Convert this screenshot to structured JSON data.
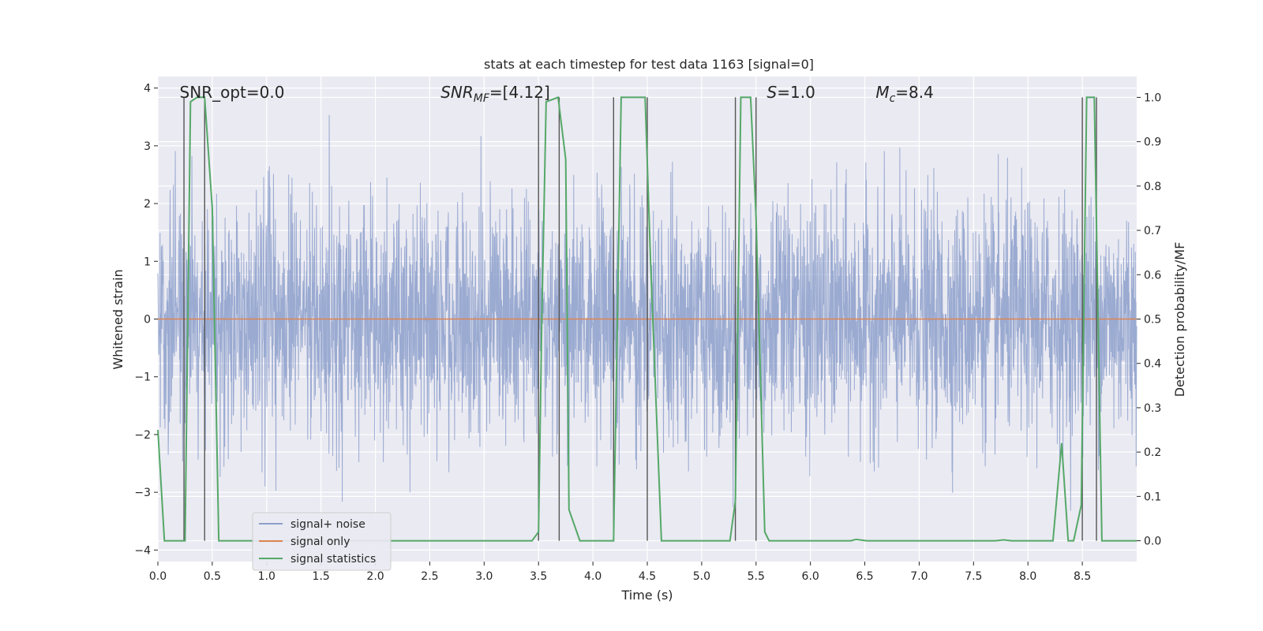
{
  "chart_data": {
    "type": "line",
    "title": "stats at each timestep for test data 1163 [signal=0]",
    "xlabel": "Time (s)",
    "ylabel": "Whitened strain",
    "y2label": "Detection probability/MF",
    "xlim": [
      0.0,
      9.0
    ],
    "ylim": [
      -4.2,
      4.2
    ],
    "y2lim": [
      -0.047,
      1.047
    ],
    "xticks": [
      0.0,
      0.5,
      1.0,
      1.5,
      2.0,
      2.5,
      3.0,
      3.5,
      4.0,
      4.5,
      5.0,
      5.5,
      6.0,
      6.5,
      7.0,
      7.5,
      8.0,
      8.5
    ],
    "yticks": [
      -4,
      -3,
      -2,
      -1,
      0,
      1,
      2,
      3,
      4
    ],
    "y2ticks": [
      0.0,
      0.1,
      0.2,
      0.3,
      0.4,
      0.5,
      0.6,
      0.7,
      0.8,
      0.9,
      1.0
    ],
    "grid": true,
    "legend": {
      "location": "lower-left",
      "entries": [
        {
          "label": "signal+ noise",
          "color": "#8c9fcb"
        },
        {
          "label": "signal only",
          "color": "#dd8452"
        },
        {
          "label": "signal statistics",
          "color": "#55a868"
        }
      ]
    },
    "annotations": [
      {
        "text": "SNR_opt=0.0",
        "x": 0.2
      },
      {
        "text": "SNR_MF=[4.12]",
        "x": 2.6
      },
      {
        "text": "S=1.0",
        "x": 5.6
      },
      {
        "text": "M_c=8.4",
        "x": 6.6
      }
    ],
    "series": [
      {
        "name": "signal+ noise",
        "axis": "left",
        "noise_std": 1.0,
        "noise_peak": 4.0,
        "x_range": [
          0.0,
          9.0
        ]
      },
      {
        "name": "signal only",
        "axis": "left",
        "x": [
          0.0,
          9.0
        ],
        "values": [
          0.0,
          0.0
        ]
      },
      {
        "name": "signal statistics",
        "axis": "right",
        "x": [
          0.0,
          0.06,
          0.25,
          0.3,
          0.36,
          0.43,
          0.5,
          0.56,
          1.0,
          2.0,
          3.0,
          3.44,
          3.5,
          3.53,
          3.57,
          3.68,
          3.75,
          3.78,
          3.88,
          4.0,
          4.19,
          4.26,
          4.48,
          4.53,
          4.63,
          4.75,
          5.0,
          5.26,
          5.31,
          5.36,
          5.45,
          5.5,
          5.58,
          5.62,
          5.75,
          6.0,
          6.37,
          6.42,
          6.52,
          7.0,
          7.7,
          7.78,
          7.85,
          8.0,
          8.23,
          8.31,
          8.37,
          8.42,
          8.49,
          8.54,
          8.61,
          8.68,
          9.0
        ],
        "values": [
          0.25,
          0.0,
          0.0,
          0.99,
          1.0,
          1.0,
          0.75,
          0.0,
          0.0,
          0.0,
          0.0,
          0.0,
          0.02,
          0.5,
          0.99,
          1.0,
          0.86,
          0.07,
          0.0,
          0.0,
          0.0,
          1.0,
          1.0,
          0.63,
          0.0,
          0.0,
          0.0,
          0.0,
          0.09,
          1.0,
          1.0,
          0.73,
          0.02,
          0.0,
          0.0,
          0.0,
          0.0,
          0.003,
          0.0,
          0.0,
          0.0,
          0.002,
          0.0,
          0.0,
          0.0,
          0.22,
          0.0,
          0.0,
          0.08,
          1.0,
          1.0,
          0.0,
          0.0
        ]
      }
    ],
    "vertical_markers": {
      "color": "#555555",
      "x": [
        0.24,
        0.43,
        3.5,
        3.69,
        4.19,
        4.5,
        5.31,
        5.5,
        8.5,
        8.63
      ]
    }
  }
}
